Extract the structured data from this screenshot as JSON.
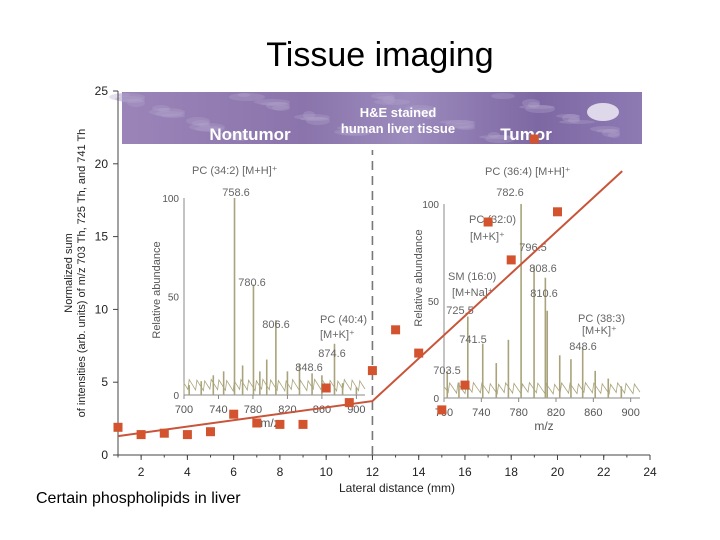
{
  "slide": {
    "title": "Tissue imaging",
    "caption": "Certain phospholipids in liver"
  },
  "colors": {
    "series": "#c8553a",
    "marker": "#d2532e",
    "spectrum": "#a8a37a",
    "banner": "#8a74ab",
    "dashed": "#777777"
  },
  "chart_data": {
    "type": "scatter",
    "title": "",
    "xlabel": "Lateral distance (mm)",
    "ylabel": "Normalized sum of intensities (arb. units) of m/z 703 Th, 725 Th, and 741 Th",
    "xlim": [
      1,
      24
    ],
    "ylim": [
      0,
      25
    ],
    "xticks": [
      2,
      4,
      6,
      8,
      10,
      12,
      14,
      16,
      18,
      20,
      22,
      24
    ],
    "yticks": [
      0,
      5,
      10,
      15,
      20,
      25
    ],
    "boundary_x": 12,
    "series": [
      {
        "x": [
          1,
          2,
          3,
          4,
          5,
          6,
          7,
          8,
          9,
          10,
          11,
          12,
          13,
          14,
          15,
          16,
          17,
          18,
          19,
          20
        ],
        "y": [
          1.9,
          1.4,
          1.5,
          1.4,
          1.6,
          2.8,
          2.2,
          2.1,
          2.1,
          4.6,
          3.6,
          5.8,
          8.6,
          7.0,
          3.1,
          4.8,
          16.0,
          13.4,
          21.7,
          16.7
        ]
      }
    ],
    "trend_line": [
      [
        1,
        1.3
      ],
      [
        12,
        3.7
      ],
      [
        22.8,
        19.5
      ]
    ],
    "banner": {
      "left_label": "Nontumor",
      "center_label_1": "H&E stained",
      "center_label_2": "human liver tissue",
      "right_label": "Tumor"
    },
    "insets": [
      {
        "xaxis_label": "m/z",
        "yaxis_label": "Relative abundance",
        "xticks": [
          700,
          740,
          780,
          820,
          860,
          900
        ],
        "yticks": [
          0,
          50,
          100
        ],
        "xrange": [
          700,
          910
        ],
        "peaks": [
          [
            706,
            5
          ],
          [
            720,
            7
          ],
          [
            734,
            10
          ],
          [
            746,
            12
          ],
          [
            758.6,
            100
          ],
          [
            768,
            15
          ],
          [
            780.6,
            56
          ],
          [
            788,
            12
          ],
          [
            796,
            18
          ],
          [
            806.6,
            38
          ],
          [
            820,
            12
          ],
          [
            834,
            16
          ],
          [
            848.6,
            11
          ],
          [
            860,
            10
          ],
          [
            874.6,
            26
          ],
          [
            884,
            6
          ],
          [
            900,
            4
          ]
        ],
        "annotations": [
          {
            "text": "PC (34:2) [M+H]⁺"
          },
          {
            "text": "758.6"
          },
          {
            "text": "780.6"
          },
          {
            "text": "806.6"
          },
          {
            "text": "PC (40:4)"
          },
          {
            "text": "[M+K]⁺"
          },
          {
            "text": "874.6"
          },
          {
            "text": "848.6"
          }
        ]
      },
      {
        "xaxis_label": "m/z",
        "yaxis_label": "Relative abundance",
        "xticks": [
          700,
          740,
          780,
          820,
          860,
          900
        ],
        "yticks": [
          0,
          50,
          100
        ],
        "xrange": [
          700,
          910
        ],
        "peaks": [
          [
            703.5,
            14
          ],
          [
            716,
            8
          ],
          [
            725.5,
            42
          ],
          [
            741.5,
            28
          ],
          [
            756,
            18
          ],
          [
            769,
            30
          ],
          [
            782.6,
            100
          ],
          [
            796.5,
            68
          ],
          [
            808.6,
            62
          ],
          [
            810.6,
            45
          ],
          [
            824,
            22
          ],
          [
            836,
            20
          ],
          [
            848.6,
            26
          ],
          [
            862,
            14
          ],
          [
            876,
            10
          ],
          [
            890,
            6
          ]
        ],
        "annotations": [
          {
            "text": "PC (36:4) [M+H]⁺"
          },
          {
            "text": "782.6"
          },
          {
            "text": "PC (32:0)"
          },
          {
            "text": "[M+K]⁺"
          },
          {
            "text": "796.5"
          },
          {
            "text": "808.6"
          },
          {
            "text": "SM (16:0)"
          },
          {
            "text": "[M+Na]⁺"
          },
          {
            "text": "810.6"
          },
          {
            "text": "725.5"
          },
          {
            "text": "PC (38:3)"
          },
          {
            "text": "[M+K]⁺"
          },
          {
            "text": "741.5"
          },
          {
            "text": "848.6"
          },
          {
            "text": "703.5"
          }
        ]
      }
    ]
  }
}
